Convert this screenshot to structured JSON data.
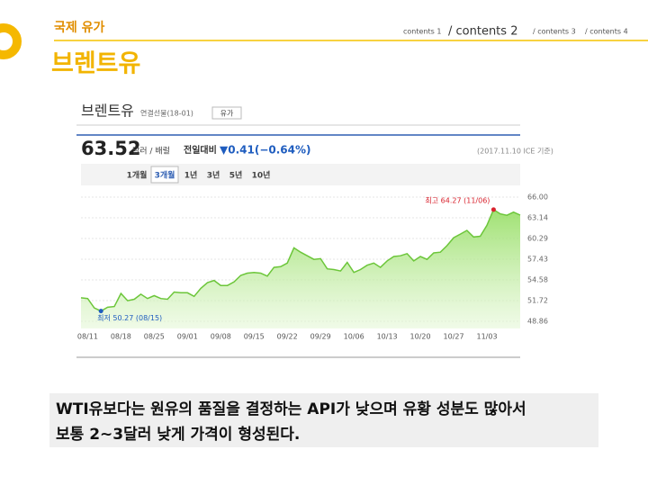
{
  "header": {
    "section": "국제 유가",
    "nav": [
      "contents 1",
      "/ contents 2",
      "/ contents 3",
      "/ contents 4"
    ],
    "active_nav": 1,
    "title": "브렌트유"
  },
  "chart_data": {
    "type": "line",
    "title": "브렌트유",
    "subtitle": "연결선물(18-01)",
    "button": "유가",
    "price": 63.52,
    "price_unit": "달러 / 배럴",
    "change_label": "전일대비",
    "change": "▼0.41(−0.64%)",
    "source": "(2017.11.10 ICE 기준)",
    "tabs": [
      "1개월",
      "3개월",
      "1년",
      "3년",
      "5년",
      "10년"
    ],
    "active_tab": 1,
    "annotations": [
      "최고 64.27 (11/06)",
      "최저 50.27 (08/15)"
    ],
    "categories": [
      null,
      "08/11",
      null,
      null,
      null,
      null,
      "08/18",
      null,
      null,
      null,
      null,
      "08/25",
      null,
      null,
      null,
      null,
      "09/01",
      null,
      null,
      null,
      null,
      "09/08",
      null,
      null,
      null,
      null,
      "09/15",
      null,
      null,
      null,
      null,
      "09/22",
      null,
      null,
      null,
      null,
      "09/29",
      null,
      null,
      null,
      null,
      "10/06",
      null,
      null,
      null,
      null,
      "10/13",
      null,
      null,
      null,
      null,
      "10/20",
      null,
      null,
      null,
      null,
      "10/27",
      null,
      null,
      null,
      null,
      "11/03",
      null,
      null,
      null,
      null,
      null
    ],
    "values": [
      52.1,
      52.0,
      50.7,
      50.27,
      50.8,
      50.9,
      52.7,
      51.7,
      51.9,
      52.6,
      52.0,
      52.4,
      52.0,
      51.9,
      52.9,
      52.8,
      52.8,
      52.3,
      53.4,
      54.2,
      54.5,
      53.8,
      53.8,
      54.3,
      55.2,
      55.5,
      55.6,
      55.5,
      55.1,
      56.3,
      56.4,
      56.9,
      59.0,
      58.4,
      57.9,
      57.4,
      57.5,
      56.1,
      56.0,
      55.8,
      57.0,
      55.6,
      56.0,
      56.6,
      56.9,
      56.3,
      57.2,
      57.8,
      57.9,
      58.2,
      57.2,
      57.8,
      57.4,
      58.3,
      58.4,
      59.3,
      60.4,
      60.9,
      61.4,
      60.5,
      60.6,
      62.1,
      64.27,
      63.69,
      63.49,
      63.93,
      63.52
    ],
    "color": "#6cc63a",
    "ylim": [
      48.86,
      66.0
    ],
    "yticks": [
      48.86,
      51.72,
      54.58,
      57.43,
      60.29,
      63.14,
      {
        "value": 66,
        "label": "66.00"
      }
    ],
    "grid": true
  },
  "body": {
    "lines": [
      "WTI유보다는 원유의 품질을 결정하는 API가 낮으며 유황 성분도 많아서",
      "보통 2~3달러 낮게 가격이 형성된다."
    ]
  }
}
